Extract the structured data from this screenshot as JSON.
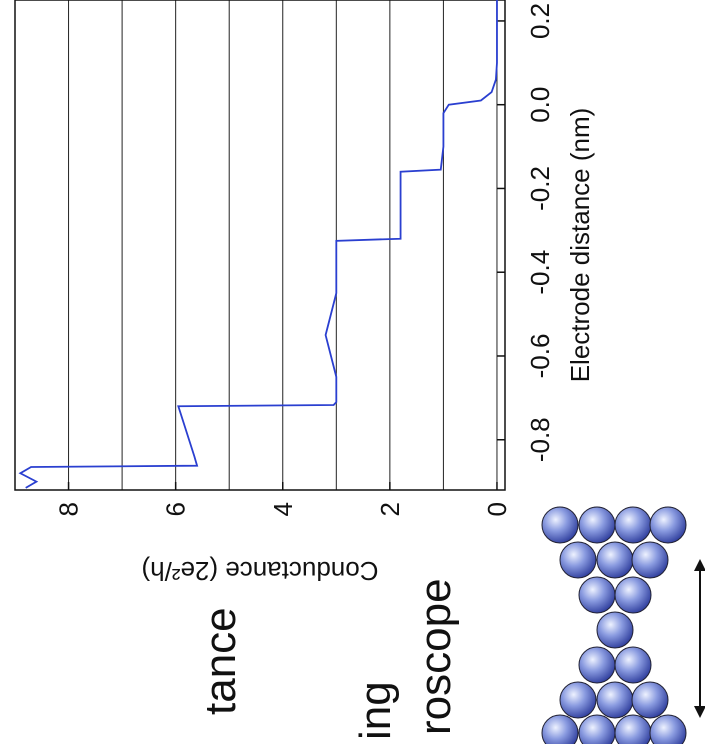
{
  "chart_data": {
    "type": "line",
    "x_label": "Electrode distance (nm)",
    "y_label": "Conductance (2e²/h)",
    "x": [
      -0.915,
      -0.9,
      -0.88,
      -0.865,
      -0.862,
      -0.84,
      -0.8,
      -0.76,
      -0.72,
      -0.717,
      -0.71,
      -0.65,
      -0.6,
      -0.55,
      -0.5,
      -0.45,
      -0.4,
      -0.35,
      -0.325,
      -0.32,
      -0.3,
      -0.2,
      -0.16,
      -0.155,
      -0.1,
      -0.02,
      0.0,
      0.01,
      0.03,
      0.06,
      0.1,
      0.2,
      0.25
    ],
    "series": [
      {
        "color": "#2a3fd0",
        "values": [
          8.8,
          8.6,
          8.9,
          8.7,
          5.6,
          5.65,
          5.75,
          5.85,
          5.95,
          3.05,
          3.0,
          3.0,
          3.1,
          3.2,
          3.1,
          3.0,
          3.0,
          3.0,
          3.0,
          1.8,
          1.8,
          1.8,
          1.8,
          1.05,
          1.0,
          1.0,
          0.9,
          0.3,
          0.1,
          0.02,
          0,
          0,
          0
        ]
      }
    ],
    "xlim": [
      -0.92,
      0.25
    ],
    "xticks": [
      -0.8,
      -0.6,
      -0.4,
      -0.2,
      {
        "value": 0,
        "label": "0.0"
      },
      0.2
    ],
    "ylim": [
      -0.15,
      9
    ],
    "yticks": [
      0,
      2,
      4,
      6,
      8
    ],
    "minor_yticks": [
      1,
      3,
      5,
      7
    ],
    "grid": true,
    "rotation": -90
  },
  "slide_fragments": [
    "tance",
    "ing",
    "roscope"
  ]
}
